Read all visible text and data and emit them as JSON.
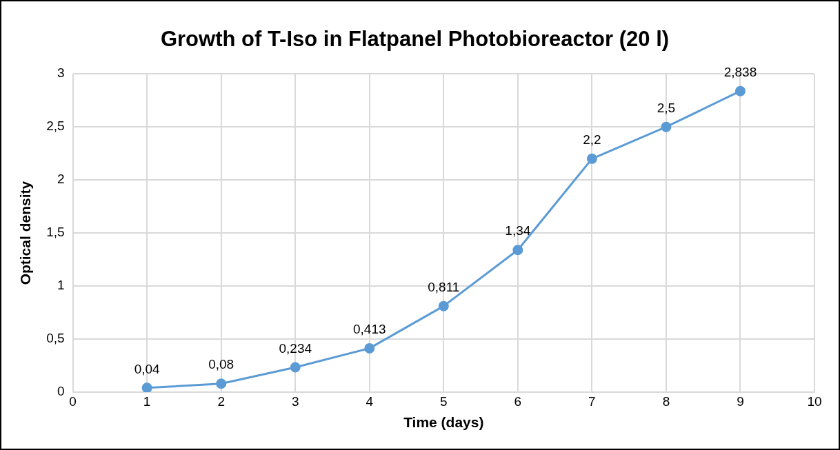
{
  "chart_data": {
    "type": "line",
    "title": "Growth of T-Iso in Flatpanel Photobioreactor (20 l)",
    "xlabel": "Time (days)",
    "ylabel": "Optical density",
    "x": [
      1,
      2,
      3,
      4,
      5,
      6,
      7,
      8,
      9
    ],
    "series": [
      {
        "color": "#5b9bd5",
        "values": [
          0.04,
          0.08,
          0.234,
          0.413,
          0.811,
          1.34,
          2.2,
          2.5,
          2.838
        ],
        "value_labels": [
          "0,04",
          "0,08",
          "0,234",
          "0,413",
          "0,811",
          "1,34",
          "2,2",
          "2,5",
          "2,838"
        ]
      }
    ],
    "xlim": [
      0,
      10
    ],
    "xticks": [
      0,
      1,
      2,
      3,
      4,
      5,
      6,
      7,
      8,
      9,
      10
    ],
    "ylim": [
      0,
      3
    ],
    "yticks": [
      0,
      {
        "value": 0.5,
        "label": "0,5"
      },
      1,
      {
        "value": 1.5,
        "label": "1,5"
      },
      2,
      {
        "value": 2.5,
        "label": "2,5"
      },
      3
    ],
    "grid": true,
    "legend": false,
    "marker": "circle",
    "line_style": "solid"
  }
}
